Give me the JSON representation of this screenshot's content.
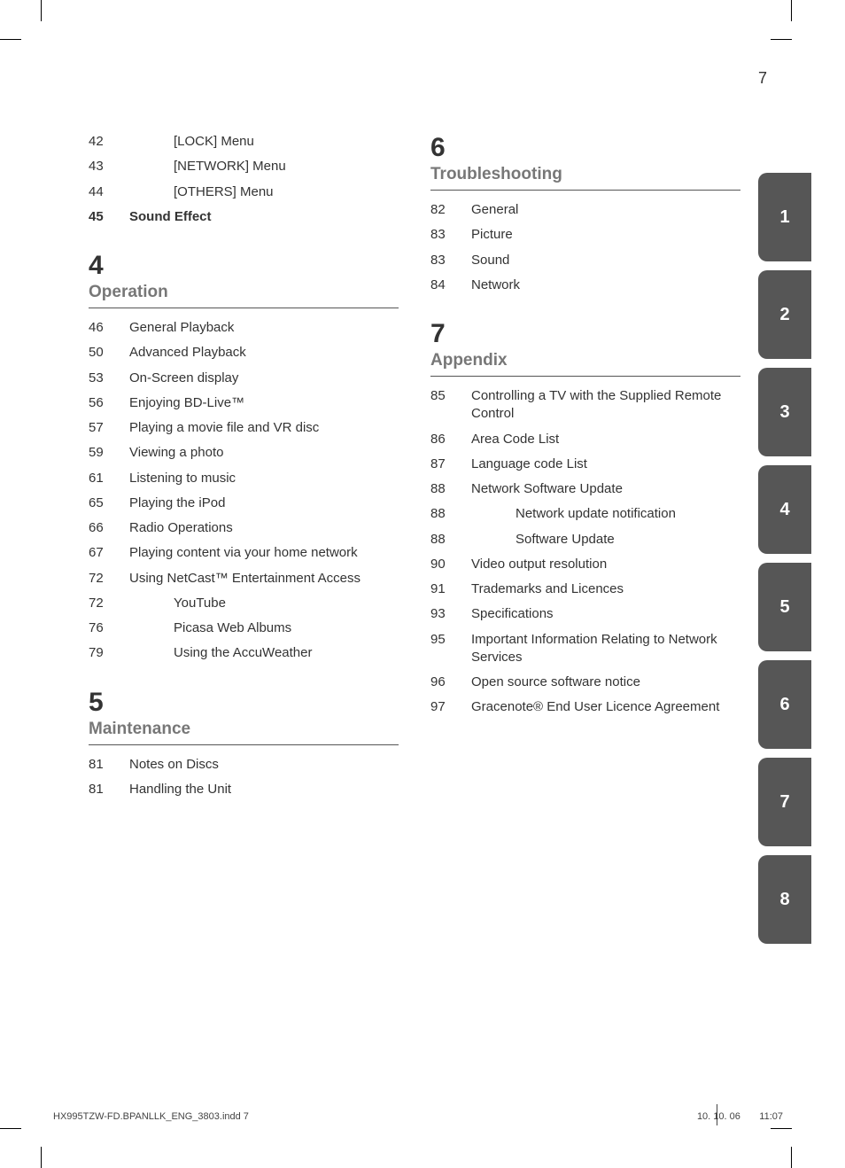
{
  "page_number": "7",
  "col_left": {
    "pre_items": [
      {
        "page": "42",
        "text": "[LOCK] Menu",
        "indent": 2
      },
      {
        "page": "43",
        "text": "[NETWORK] Menu",
        "indent": 2
      },
      {
        "page": "44",
        "text": "[OTHERS] Menu",
        "indent": 2
      },
      {
        "page": "45",
        "text": "Sound Effect",
        "indent": 1,
        "bold": true
      }
    ],
    "sections": [
      {
        "num": "4",
        "title": "Operation",
        "items": [
          {
            "page": "46",
            "text": "General Playback",
            "indent": 1
          },
          {
            "page": "50",
            "text": "Advanced Playback",
            "indent": 1
          },
          {
            "page": "53",
            "text": "On-Screen display",
            "indent": 1
          },
          {
            "page": "56",
            "text": "Enjoying BD-Live™",
            "indent": 1
          },
          {
            "page": "57",
            "text": "Playing a movie file and VR disc",
            "indent": 1
          },
          {
            "page": "59",
            "text": "Viewing a photo",
            "indent": 1
          },
          {
            "page": "61",
            "text": "Listening to music",
            "indent": 1
          },
          {
            "page": "65",
            "text": "Playing the iPod",
            "indent": 1
          },
          {
            "page": "66",
            "text": "Radio Operations",
            "indent": 1
          },
          {
            "page": "67",
            "text": "Playing content via your home network",
            "indent": 1
          },
          {
            "page": "72",
            "text": "Using NetCast™ Entertainment Access",
            "indent": 1
          },
          {
            "page": "72",
            "text": "YouTube",
            "indent": 2
          },
          {
            "page": "76",
            "text": "Picasa Web Albums",
            "indent": 2
          },
          {
            "page": "79",
            "text": "Using the AccuWeather",
            "indent": 2
          }
        ]
      },
      {
        "num": "5",
        "title": "Maintenance",
        "items": [
          {
            "page": "81",
            "text": "Notes on Discs",
            "indent": 1
          },
          {
            "page": "81",
            "text": "Handling the Unit",
            "indent": 1
          }
        ]
      }
    ]
  },
  "col_right": {
    "sections": [
      {
        "num": "6",
        "title": "Troubleshooting",
        "items": [
          {
            "page": "82",
            "text": "General",
            "indent": 1
          },
          {
            "page": "83",
            "text": "Picture",
            "indent": 1
          },
          {
            "page": "83",
            "text": "Sound",
            "indent": 1
          },
          {
            "page": "84",
            "text": "Network",
            "indent": 1
          }
        ]
      },
      {
        "num": "7",
        "title": "Appendix",
        "items": [
          {
            "page": "85",
            "text": "Controlling a TV with the Supplied Remote Control",
            "indent": 1
          },
          {
            "page": "86",
            "text": "Area Code List",
            "indent": 1
          },
          {
            "page": "87",
            "text": "Language code List",
            "indent": 1
          },
          {
            "page": "88",
            "text": "Network Software Update",
            "indent": 1
          },
          {
            "page": "88",
            "text": "Network update notification",
            "indent": 2
          },
          {
            "page": "88",
            "text": "Software Update",
            "indent": 2
          },
          {
            "page": "90",
            "text": "Video output resolution",
            "indent": 1
          },
          {
            "page": "91",
            "text": "Trademarks and Licences",
            "indent": 1
          },
          {
            "page": "93",
            "text": "Specifications",
            "indent": 1
          },
          {
            "page": "95",
            "text": "Important Information Relating to Network Services",
            "indent": 1
          },
          {
            "page": "96",
            "text": "Open source software notice",
            "indent": 1
          },
          {
            "page": "97",
            "text": "Gracenote® End User Licence Agreement",
            "indent": 1
          }
        ]
      }
    ]
  },
  "tabs": [
    "1",
    "2",
    "3",
    "4",
    "5",
    "6",
    "7",
    "8"
  ],
  "footer": {
    "left": "HX995TZW-FD.BPANLLK_ENG_3803.indd   7",
    "date": "10. 10. 06",
    "time": "11:07"
  },
  "colors": {
    "tab_bg": "#565656",
    "tab_text": "#ffffff",
    "section_title": "#777777",
    "rule": "#555555",
    "text": "#333333"
  }
}
